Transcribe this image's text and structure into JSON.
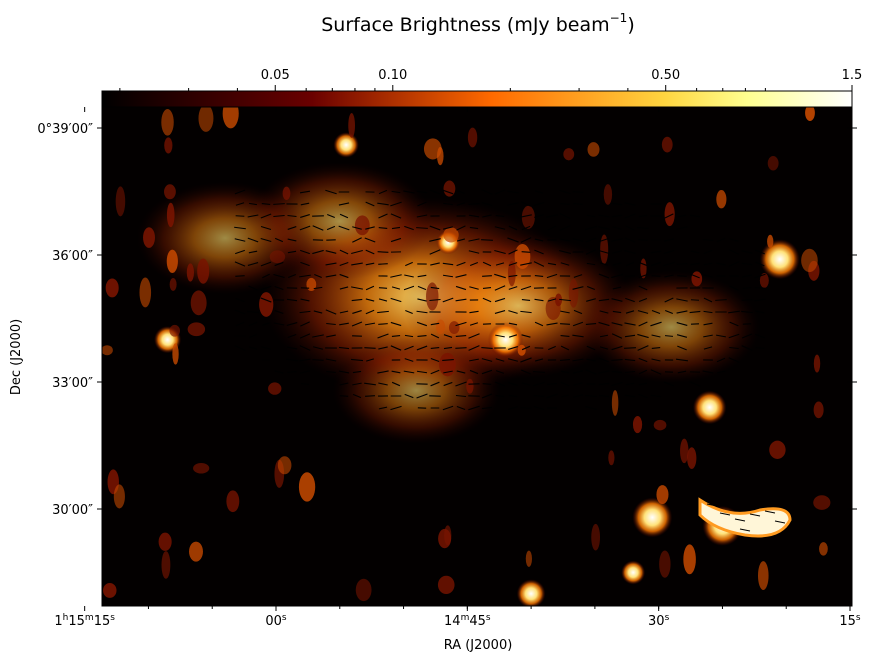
{
  "chart_data": {
    "type": "heatmap",
    "title": "Surface Brightness (mJy beam",
    "title_sup": "−1",
    "title_suffix": ")",
    "xlabel": "RA (J2000)",
    "ylabel": "Dec (J2000)",
    "colorbar": {
      "scale": "log",
      "colormap": "afmhot",
      "range": [
        0.018,
        1.5
      ],
      "tick_labels": [
        {
          "value": 0.05,
          "label": "0.05"
        },
        {
          "value": 0.1,
          "label": "0.10"
        },
        {
          "value": 0.5,
          "label": "0.50"
        },
        {
          "value": 1.5,
          "label": "1.5"
        }
      ]
    },
    "x_axis": {
      "unit": "seconds of RA",
      "ticks": [
        {
          "value": 75,
          "main": "1",
          "sup1": "h",
          "mid": "15",
          "sup2": "m",
          "end": "15",
          "sup3": "s"
        },
        {
          "value": 60,
          "main": "00",
          "sup1": "s"
        },
        {
          "value": 45,
          "main": "14",
          "sup1": "m",
          "mid": "45",
          "sup2": "s"
        },
        {
          "value": 30,
          "main": "30",
          "sup1": "s"
        },
        {
          "value": 15,
          "main": "15",
          "sup1": "s"
        }
      ]
    },
    "y_axis": {
      "unit": "arcmin of Dec",
      "ticks": [
        {
          "value": 39,
          "label": "0°39′00″"
        },
        {
          "value": 36,
          "label": "36′00″"
        },
        {
          "value": 33,
          "label": "33′00″"
        },
        {
          "value": 30,
          "label": "30′00″"
        }
      ]
    },
    "brightness_regions": [
      {
        "kind": "diffuse",
        "ra": 48.5,
        "dec": 35.0,
        "brightness": 1.0
      },
      {
        "kind": "diffuse",
        "ra": 41.0,
        "dec": 34.8,
        "brightness": 0.5
      },
      {
        "kind": "diffuse",
        "ra": 55.0,
        "dec": 36.8,
        "brightness": 0.25
      },
      {
        "kind": "diffuse",
        "ra": 64.0,
        "dec": 36.4,
        "brightness": 0.2
      },
      {
        "kind": "diffuse",
        "ra": 49.0,
        "dec": 32.8,
        "brightness": 0.15
      },
      {
        "kind": "diffuse",
        "ra": 29.0,
        "dec": 34.3,
        "brightness": 0.2
      },
      {
        "kind": "source",
        "ra": 42.0,
        "dec": 34.0,
        "brightness": 1.2
      },
      {
        "kind": "source",
        "ra": 20.5,
        "dec": 35.9,
        "brightness": 1.5
      },
      {
        "kind": "source",
        "ra": 30.5,
        "dec": 29.8,
        "brightness": 1.5
      },
      {
        "kind": "source",
        "ra": 25.0,
        "dec": 29.6,
        "brightness": 1.5
      },
      {
        "kind": "source",
        "ra": 26.0,
        "dec": 32.4,
        "brightness": 1.1
      },
      {
        "kind": "source",
        "ra": 76.5,
        "dec": 38.2,
        "brightness": 0.9
      },
      {
        "kind": "source",
        "ra": 54.5,
        "dec": 38.6,
        "brightness": 0.6
      },
      {
        "kind": "source",
        "ra": 68.5,
        "dec": 34.0,
        "brightness": 0.7
      },
      {
        "kind": "source",
        "ra": 77.0,
        "dec": 29.2,
        "brightness": 0.6
      },
      {
        "kind": "source",
        "ra": 40.0,
        "dec": 28.0,
        "brightness": 0.8
      },
      {
        "kind": "source",
        "ra": 46.5,
        "dec": 36.3,
        "brightness": 0.5
      },
      {
        "kind": "source",
        "ra": 32.0,
        "dec": 28.5,
        "brightness": 0.5
      }
    ]
  }
}
